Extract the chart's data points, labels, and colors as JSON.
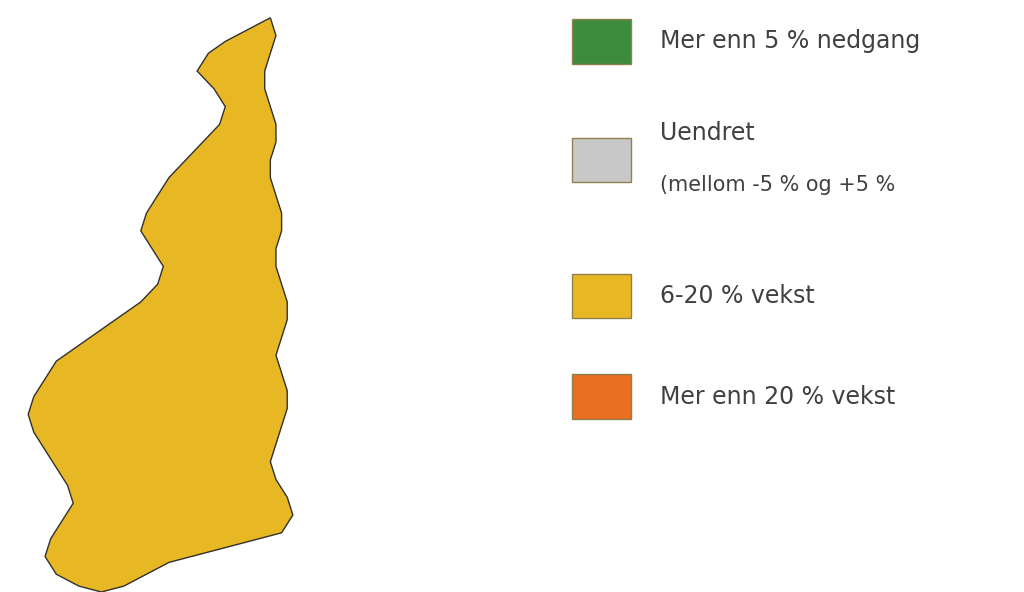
{
  "background_color": "#ffffff",
  "legend_items": [
    {
      "label": "Mer enn 5 % nedgang",
      "color": "#3d8c3d",
      "edge_color": "#999960"
    },
    {
      "label": "Uendret\n(mellom -5 % og +5 %",
      "color": "#c8c8c8",
      "edge_color": "#999960"
    },
    {
      "label": "6-20 % vekst",
      "color": "#e8b824",
      "edge_color": "#999960"
    },
    {
      "label": "Mer enn 20 % vekst",
      "color": "#e87020",
      "edge_color": "#999960"
    }
  ],
  "map_colors": {
    "decline": "#3d8c3d",
    "unchanged": "#c8c8c8",
    "moderate_growth": "#e8b824",
    "high_growth": "#e87020"
  },
  "border_color": "#303030",
  "figsize": [
    10.24,
    5.92
  ],
  "dpi": 100,
  "text_color": "#404040",
  "legend_fontsize": 17
}
